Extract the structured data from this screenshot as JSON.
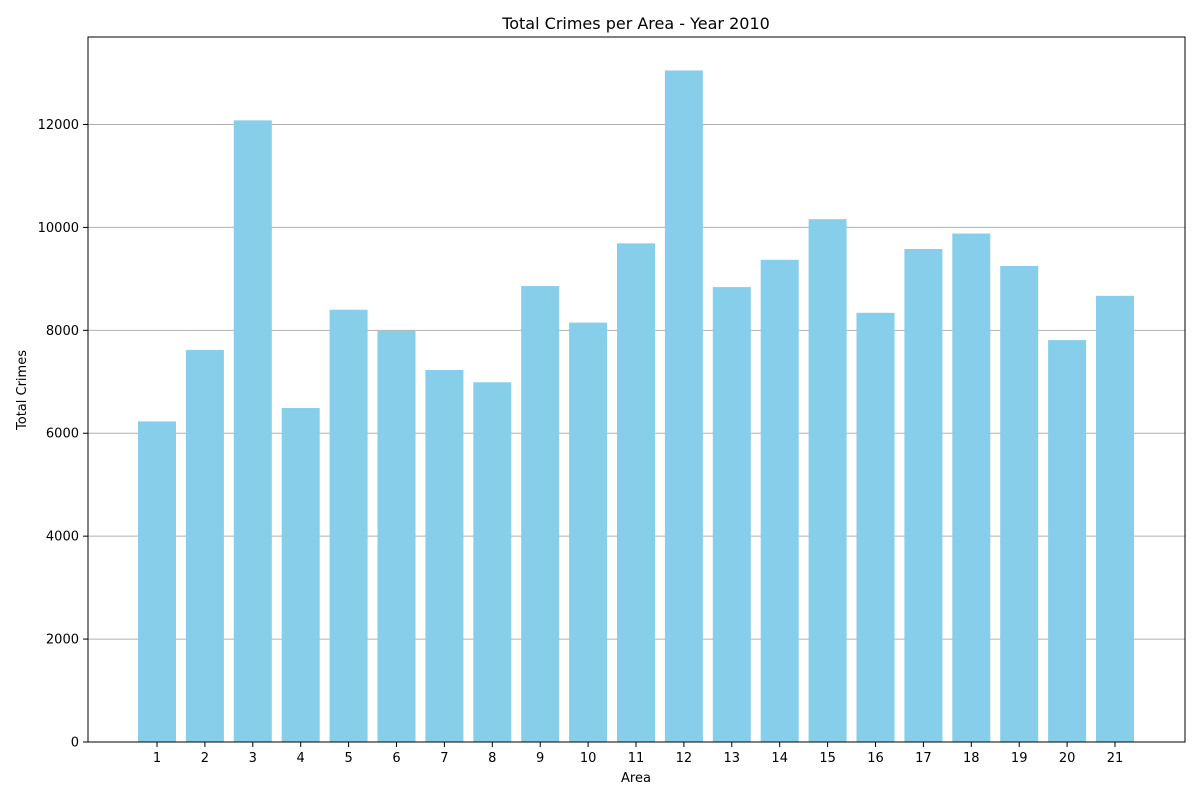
{
  "chart_data": {
    "type": "bar",
    "title": "Total Crimes per Area - Year 2010",
    "xlabel": "Area",
    "ylabel": "Total Crimes",
    "categories": [
      "1",
      "2",
      "3",
      "4",
      "5",
      "6",
      "7",
      "8",
      "9",
      "10",
      "11",
      "12",
      "13",
      "14",
      "15",
      "16",
      "17",
      "18",
      "19",
      "20",
      "21"
    ],
    "values": [
      6230,
      7620,
      12080,
      6490,
      8400,
      7990,
      7230,
      6990,
      8860,
      8150,
      9690,
      13050,
      8840,
      9370,
      10160,
      8340,
      9580,
      9880,
      9250,
      7810,
      8670
    ],
    "ylim": [
      0,
      13700
    ],
    "yticks": [
      0,
      2000,
      4000,
      6000,
      8000,
      10000,
      12000
    ],
    "grid": "horizontal",
    "bar_color": "#87ceeb"
  }
}
